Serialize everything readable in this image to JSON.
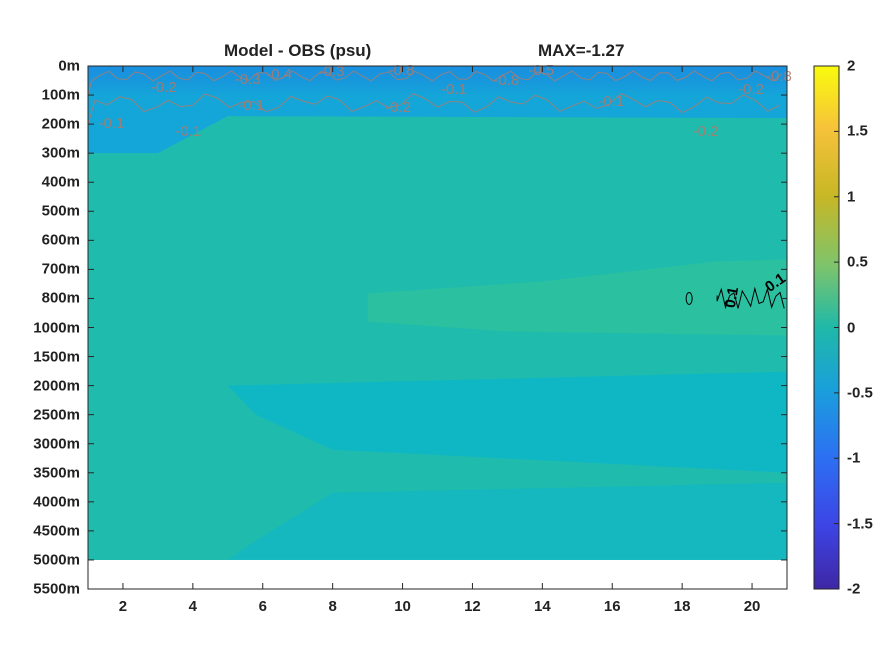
{
  "title_left": "Model - OBS (psu)",
  "title_right": "MAX=-1.27",
  "chart_data": {
    "type": "heatmap",
    "title": "Model - OBS (psu)",
    "annotation": "MAX=-1.27",
    "xlabel": "",
    "ylabel": "",
    "x_range": [
      1,
      21
    ],
    "x_ticks": [
      "2",
      "4",
      "6",
      "8",
      "10",
      "12",
      "14",
      "16",
      "18",
      "20"
    ],
    "y_ticks": [
      "0m",
      "100m",
      "200m",
      "300m",
      "400m",
      "500m",
      "600m",
      "700m",
      "800m",
      "1000m",
      "1500m",
      "2000m",
      "2500m",
      "3000m",
      "3500m",
      "4000m",
      "4500m",
      "5000m",
      "5500m"
    ],
    "data_bottom_depth": "5000m",
    "colorbar": {
      "colormap": "parula",
      "range": [
        -2,
        2
      ],
      "ticks": [
        "2",
        "1.5",
        "1",
        "0.5",
        "0",
        "-0.5",
        "-1",
        "-1.5",
        "-2"
      ]
    },
    "contour_labels_negative": [
      "-0.2",
      "-0.3",
      "-0.4",
      "-0.3",
      "-0.8",
      "-0.5",
      "-0.8",
      "-0.8",
      "-0.2",
      "-0.1",
      "-0.1",
      "-0.2",
      "-0.1",
      "-0.1",
      "-0.2",
      "-0.1"
    ],
    "contour_labels_positive": [
      "0.1",
      "0.1"
    ],
    "regions": [
      {
        "depth": "0m-100m",
        "value": -0.6
      },
      {
        "depth": "100m-300m",
        "value": -0.15
      },
      {
        "depth": "300m-700m",
        "value": 0.05
      },
      {
        "depth": "700m-1000m",
        "x": [
          9,
          21
        ],
        "value": 0.1
      },
      {
        "depth": "1000m-2000m",
        "value": 0.05
      },
      {
        "depth": "2000m-3500m",
        "x": [
          5,
          21
        ],
        "value": 0.0
      },
      {
        "depth": "2500m-5000m",
        "x": [
          1,
          6
        ],
        "value": 0.05
      },
      {
        "depth": "3500m-5000m",
        "x": [
          6,
          21
        ],
        "value": 0.02
      }
    ],
    "colors": {
      "deep_negative": "#1a8fe0",
      "negative": "#14a6d8",
      "zero": "#0fb7c4",
      "positive_small": "#1fbcae",
      "positive": "#2ac0a0",
      "contour_negative": "#b07a6a",
      "contour_positive": "#000000"
    }
  }
}
